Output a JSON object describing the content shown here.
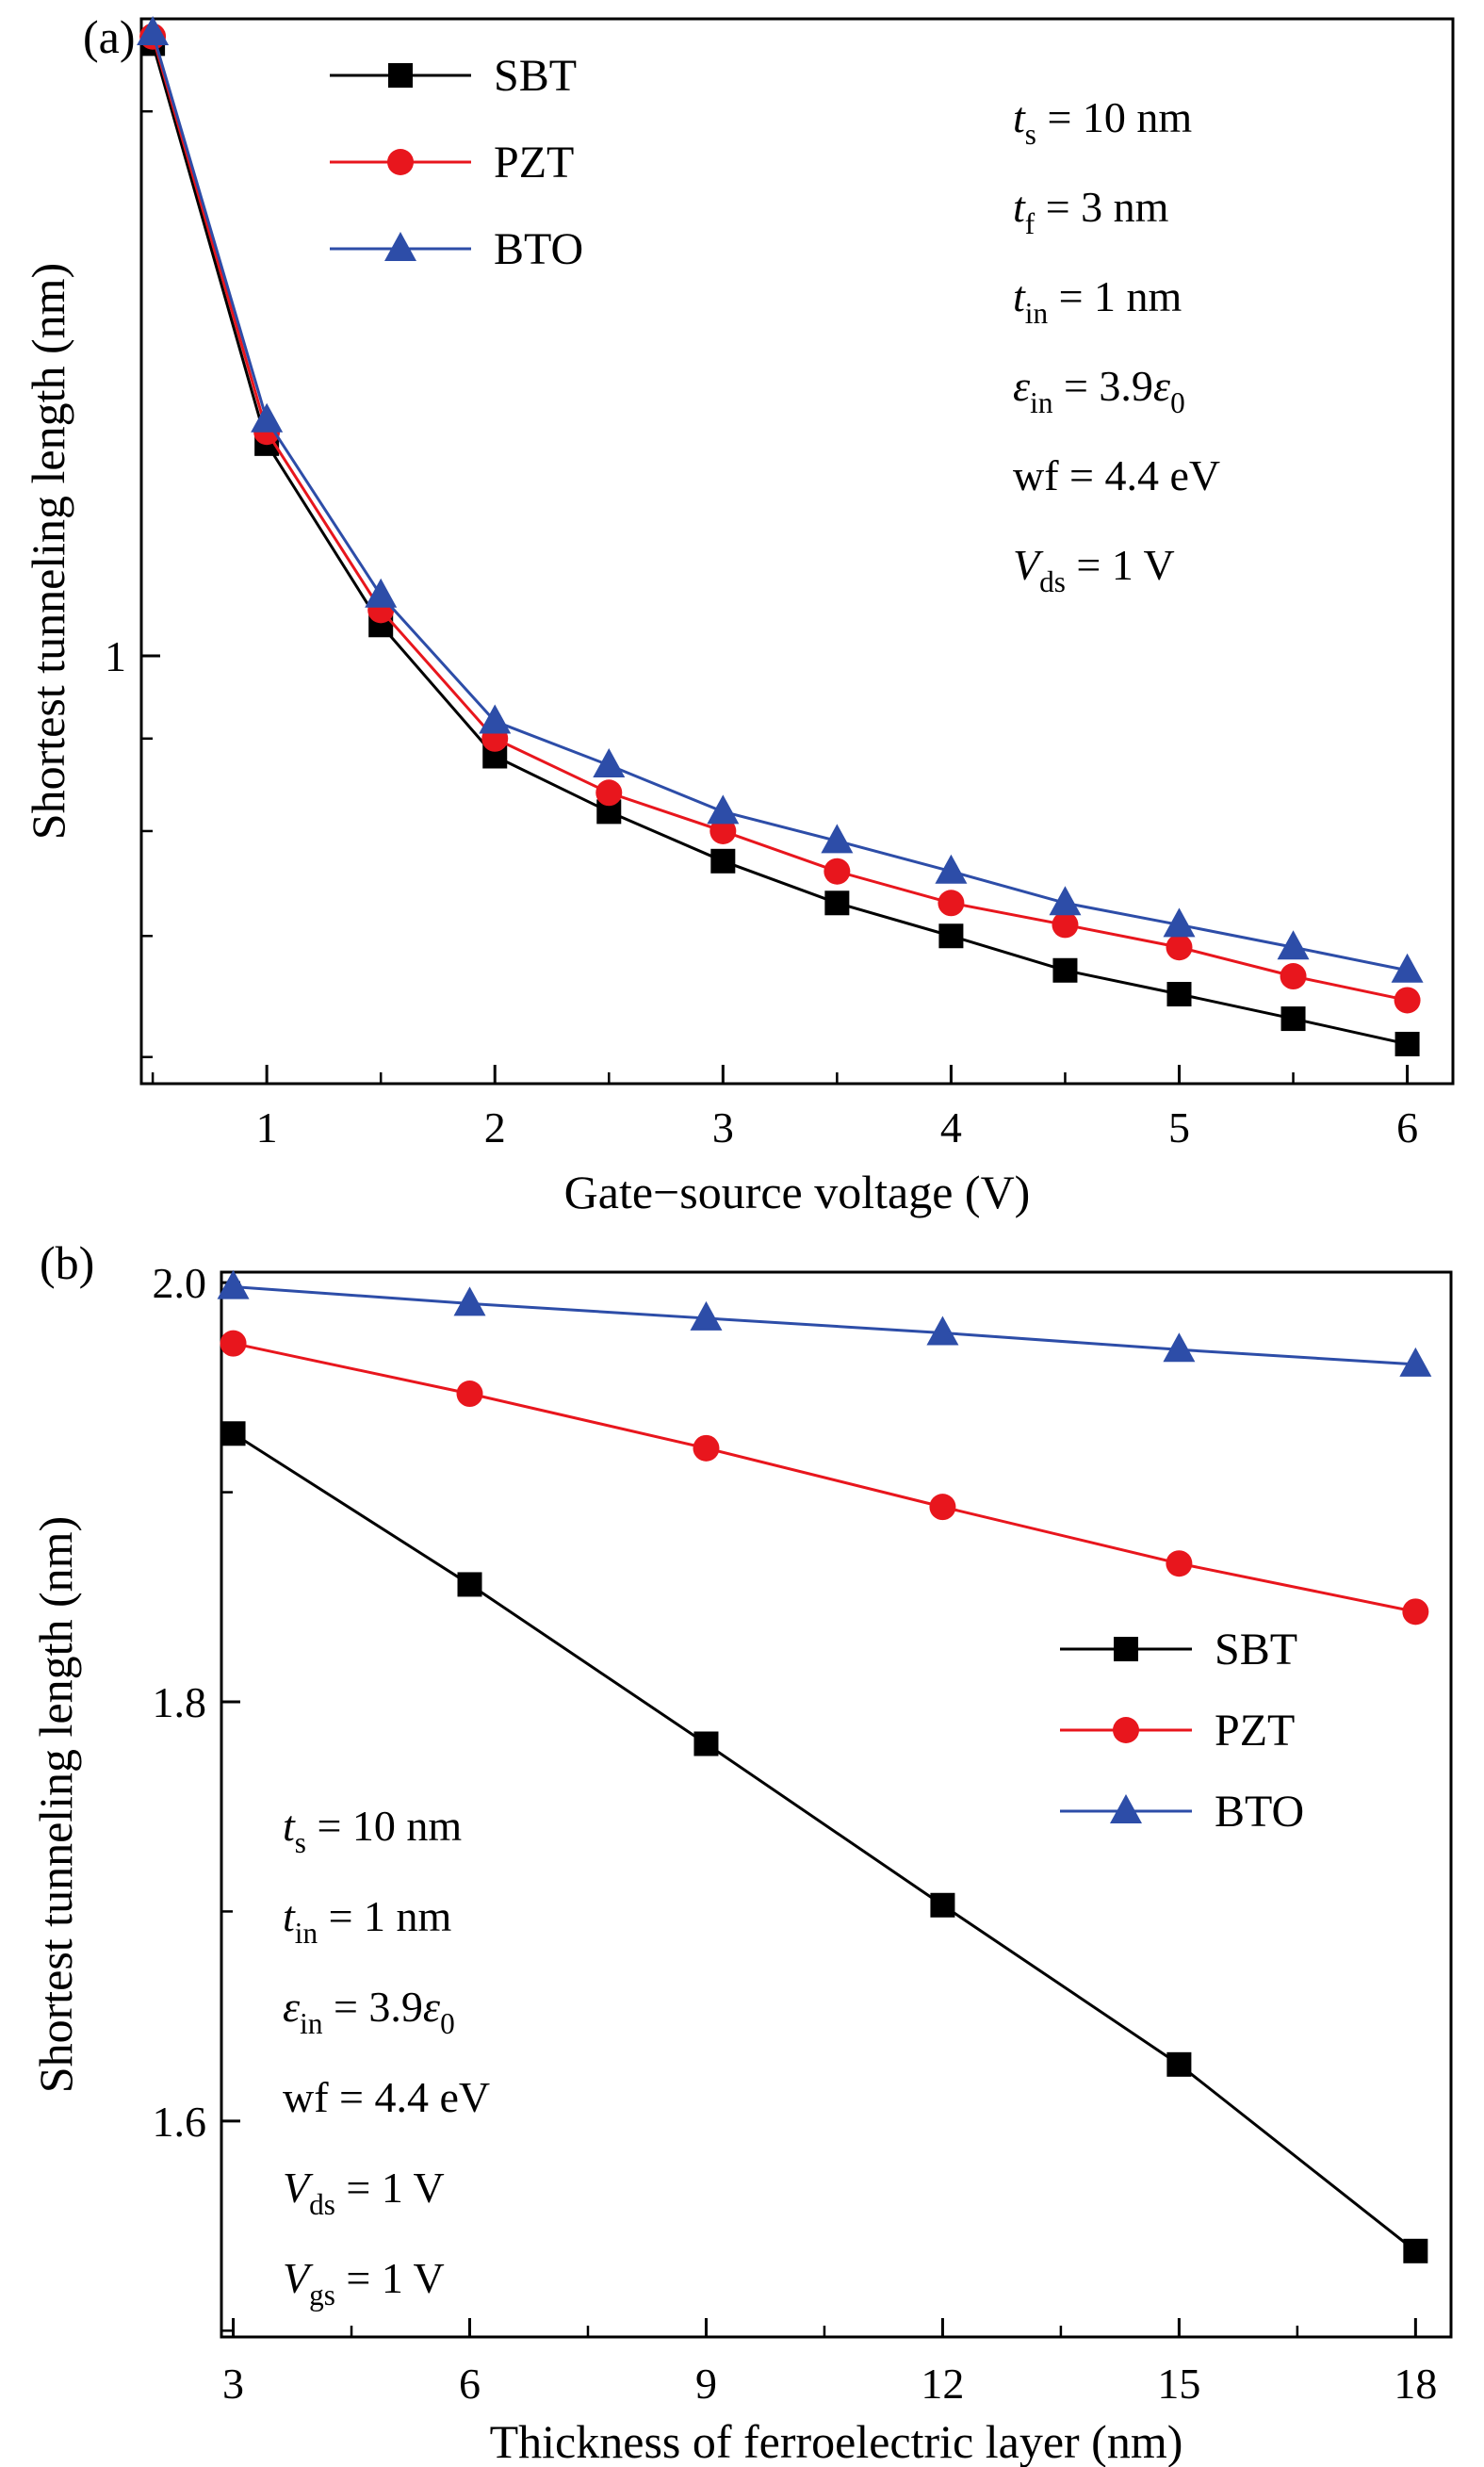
{
  "figure": {
    "background": "#ffffff",
    "series_colors": {
      "SBT": "#000000",
      "PZT": "#e8161d",
      "BTO": "#2d4da8"
    }
  },
  "chart_data": [
    {
      "id": "a",
      "type": "line",
      "panel_label": "(a)",
      "xlabel": "Gate−source voltage (V)",
      "ylabel": "Shortest tunneling length (nm)",
      "x": [
        0.5,
        1.0,
        1.5,
        2.0,
        2.5,
        3.0,
        3.5,
        4.0,
        4.5,
        5.0,
        5.5,
        6.0
      ],
      "series": [
        {
          "name": "SBT",
          "marker": "square",
          "color": "#000000",
          "values": [
            2.18,
            1.31,
            1.04,
            0.88,
            0.82,
            0.77,
            0.73,
            0.7,
            0.67,
            0.65,
            0.63,
            0.61
          ]
        },
        {
          "name": "PZT",
          "marker": "circle",
          "color": "#e8161d",
          "values": [
            2.2,
            1.33,
            1.06,
            0.9,
            0.84,
            0.8,
            0.76,
            0.73,
            0.71,
            0.69,
            0.665,
            0.645
          ]
        },
        {
          "name": "BTO",
          "marker": "triangle",
          "color": "#2d4da8",
          "values": [
            2.21,
            1.35,
            1.08,
            0.92,
            0.87,
            0.82,
            0.79,
            0.76,
            0.73,
            0.71,
            0.69,
            0.67
          ]
        }
      ],
      "xscale": "linear",
      "yscale": "log",
      "xlim": [
        0.45,
        6.2
      ],
      "ylim": [
        0.58,
        2.25
      ],
      "xticks": [
        1,
        2,
        3,
        4,
        5,
        6
      ],
      "xticks_minor": [
        0.5,
        1.5,
        2.5,
        3.5,
        4.5,
        5.5
      ],
      "yticks": [
        1
      ],
      "yticks_minor": [
        0.6,
        0.7,
        0.8,
        0.9,
        2.0
      ],
      "grid": false,
      "legend": {
        "position": "upper-left",
        "entries": [
          "SBT",
          "PZT",
          "BTO"
        ]
      },
      "annotations": [
        "*t*~s~ = 10 nm",
        "*t*~f~ = 3 nm",
        "*t*~in~ = 1 nm",
        "*ε*~in~ = 3.9*ε*~0~",
        "wf = 4.4 eV",
        "*V*~ds~ = 1 V"
      ]
    },
    {
      "id": "b",
      "type": "line",
      "panel_label": "(b)",
      "xlabel": "Thickness of ferroelectric layer (nm)",
      "ylabel": "Shortest tunneling length (nm)",
      "x": [
        3,
        6,
        9,
        12,
        15,
        18
      ],
      "series": [
        {
          "name": "SBT",
          "marker": "square",
          "color": "#000000",
          "values": [
            1.928,
            1.856,
            1.78,
            1.703,
            1.627,
            1.538
          ]
        },
        {
          "name": "PZT",
          "marker": "circle",
          "color": "#e8161d",
          "values": [
            1.971,
            1.947,
            1.921,
            1.893,
            1.866,
            1.843
          ]
        },
        {
          "name": "BTO",
          "marker": "triangle",
          "color": "#2d4da8",
          "values": [
            1.998,
            1.99,
            1.983,
            1.976,
            1.968,
            1.961
          ]
        }
      ],
      "xscale": "linear",
      "yscale": "linear",
      "xlim": [
        2.85,
        18.45
      ],
      "ylim": [
        1.497,
        2.005
      ],
      "xticks": [
        3,
        6,
        9,
        12,
        15,
        18
      ],
      "xticks_minor": [
        4.5,
        7.5,
        10.5,
        13.5,
        16.5
      ],
      "yticks": [
        1.6,
        1.8,
        2.0
      ],
      "yticks_minor": [
        1.5,
        1.7,
        1.9
      ],
      "grid": false,
      "legend": {
        "position": "middle-right",
        "entries": [
          "SBT",
          "PZT",
          "BTO"
        ]
      },
      "annotations": [
        "*t*~s~ = 10 nm",
        "*t*~in~ = 1 nm",
        "*ε*~in~ = 3.9*ε*~0~",
        "wf = 4.4 eV",
        "*V*~ds~ = 1 V",
        "*V*~gs~ = 1 V"
      ]
    }
  ]
}
